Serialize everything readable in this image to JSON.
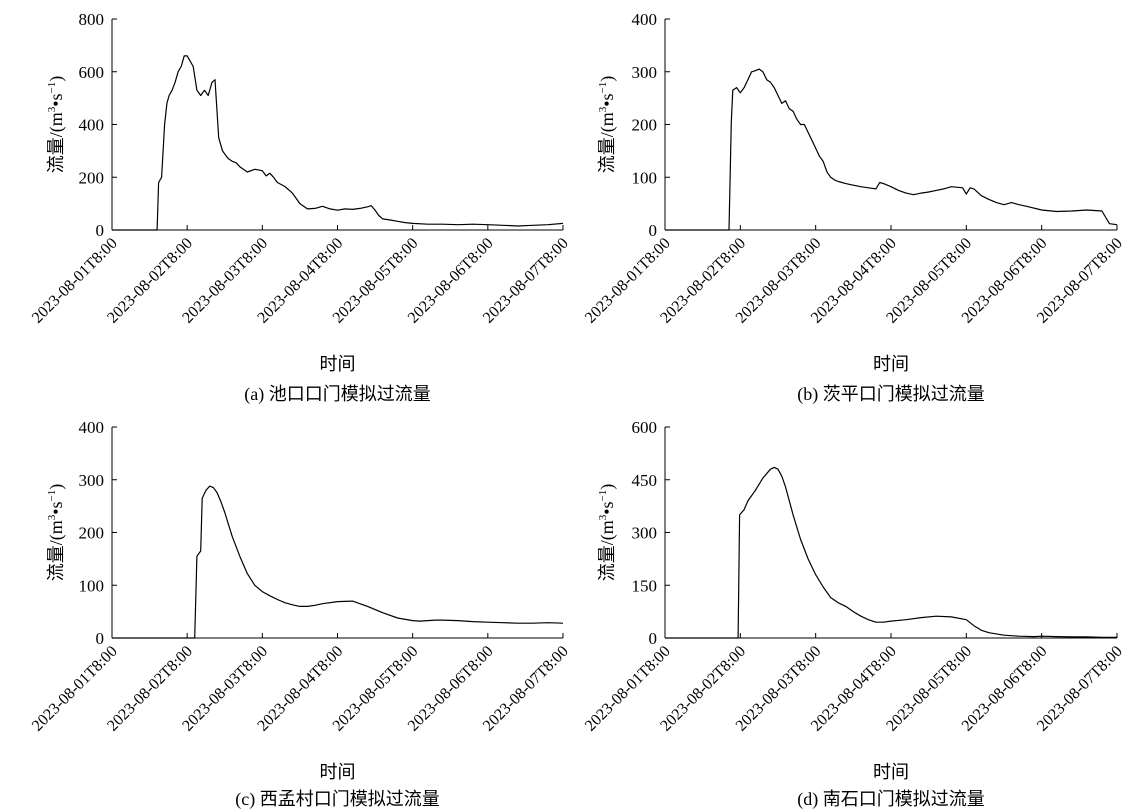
{
  "chart_data": [
    {
      "type": "line",
      "caption": "(a) 池口口门模拟过流量",
      "xlabel": "时间",
      "ylabel_main": "流量/(m",
      "ylabel_sup": "3",
      "ylabel_mid": "•s",
      "ylabel_sup2": "−1",
      "ylabel_end": ")",
      "x_ticks": [
        "2023-08-01T8:00",
        "2023-08-02T8:00",
        "2023-08-03T8:00",
        "2023-08-04T8:00",
        "2023-08-05T8:00",
        "2023-08-06T8:00",
        "2023-08-07T8:00"
      ],
      "xlim": [
        0,
        6
      ],
      "ylim": [
        0,
        800
      ],
      "y_ticks": [
        0,
        200,
        400,
        600,
        800
      ],
      "series": [
        {
          "x": [
            0,
            0.6,
            0.62,
            0.66,
            0.7,
            0.73,
            0.76,
            0.8,
            0.84,
            0.88,
            0.92,
            0.96,
            1.0,
            1.04,
            1.08,
            1.13,
            1.18,
            1.23,
            1.28,
            1.33,
            1.37,
            1.42,
            1.47,
            1.52,
            1.55,
            1.6,
            1.65,
            1.7,
            1.8,
            1.9,
            2.0,
            2.05,
            2.1,
            2.15,
            2.2,
            2.3,
            2.4,
            2.5,
            2.6,
            2.7,
            2.8,
            2.9,
            3.0,
            3.1,
            3.2,
            3.3,
            3.4,
            3.45,
            3.5,
            3.55,
            3.6,
            3.7,
            3.8,
            3.9,
            4.0,
            4.2,
            4.4,
            4.6,
            4.8,
            5.0,
            5.2,
            5.4,
            5.6,
            5.8,
            6.0
          ],
          "y": [
            0,
            0,
            180,
            200,
            400,
            480,
            510,
            530,
            560,
            600,
            620,
            660,
            660,
            640,
            620,
            530,
            510,
            530,
            510,
            560,
            570,
            350,
            300,
            280,
            270,
            260,
            255,
            240,
            220,
            230,
            225,
            205,
            215,
            200,
            180,
            165,
            140,
            100,
            80,
            82,
            90,
            80,
            75,
            80,
            78,
            82,
            88,
            92,
            75,
            55,
            42,
            38,
            33,
            28,
            25,
            22,
            22,
            20,
            22,
            20,
            18,
            15,
            18,
            20,
            25
          ]
        }
      ]
    },
    {
      "type": "line",
      "caption": "(b) 茨平口门模拟过流量",
      "xlabel": "时间",
      "ylabel_main": "流量/(m",
      "ylabel_sup": "3",
      "ylabel_mid": "•s",
      "ylabel_sup2": "−1",
      "ylabel_end": ")",
      "x_ticks": [
        "2023-08-01T8:00",
        "2023-08-02T8:00",
        "2023-08-03T8:00",
        "2023-08-04T8:00",
        "2023-08-05T8:00",
        "2023-08-06T8:00",
        "2023-08-07T8:00"
      ],
      "xlim": [
        0,
        6
      ],
      "ylim": [
        0,
        400
      ],
      "y_ticks": [
        0,
        100,
        200,
        300,
        400
      ],
      "series": [
        {
          "x": [
            0,
            0.85,
            0.88,
            0.9,
            0.95,
            1.0,
            1.05,
            1.1,
            1.15,
            1.2,
            1.25,
            1.3,
            1.35,
            1.4,
            1.45,
            1.5,
            1.55,
            1.6,
            1.65,
            1.7,
            1.75,
            1.8,
            1.85,
            1.9,
            1.95,
            2.0,
            2.05,
            2.1,
            2.15,
            2.2,
            2.25,
            2.3,
            2.35,
            2.4,
            2.5,
            2.6,
            2.7,
            2.8,
            2.85,
            2.9,
            3.0,
            3.1,
            3.2,
            3.3,
            3.4,
            3.5,
            3.6,
            3.7,
            3.8,
            3.95,
            4.0,
            4.05,
            4.1,
            4.2,
            4.3,
            4.4,
            4.5,
            4.6,
            4.7,
            4.8,
            5.0,
            5.2,
            5.4,
            5.6,
            5.8,
            5.9,
            6.0
          ],
          "y": [
            0,
            0,
            205,
            265,
            270,
            260,
            270,
            285,
            300,
            302,
            305,
            300,
            285,
            280,
            270,
            255,
            240,
            245,
            230,
            225,
            210,
            200,
            200,
            185,
            170,
            155,
            140,
            130,
            110,
            100,
            95,
            92,
            90,
            88,
            85,
            82,
            80,
            78,
            90,
            88,
            82,
            75,
            70,
            67,
            70,
            72,
            75,
            78,
            82,
            80,
            68,
            80,
            78,
            65,
            58,
            52,
            48,
            52,
            48,
            45,
            38,
            35,
            36,
            38,
            36,
            12,
            10
          ]
        }
      ]
    },
    {
      "type": "line",
      "caption": "(c) 西孟村口门模拟过流量",
      "xlabel": "时间",
      "ylabel_main": "流量/(m",
      "ylabel_sup": "3",
      "ylabel_mid": "•s",
      "ylabel_sup2": "−1",
      "ylabel_end": ")",
      "x_ticks": [
        "2023-08-01T8:00",
        "2023-08-02T8:00",
        "2023-08-03T8:00",
        "2023-08-04T8:00",
        "2023-08-05T8:00",
        "2023-08-06T8:00",
        "2023-08-07T8:00"
      ],
      "xlim": [
        0,
        6
      ],
      "ylim": [
        0,
        400
      ],
      "y_ticks": [
        0,
        100,
        200,
        300,
        400
      ],
      "series": [
        {
          "x": [
            0,
            1.1,
            1.13,
            1.18,
            1.2,
            1.25,
            1.3,
            1.35,
            1.4,
            1.45,
            1.5,
            1.55,
            1.6,
            1.7,
            1.8,
            1.9,
            2.0,
            2.1,
            2.2,
            2.3,
            2.4,
            2.5,
            2.6,
            2.7,
            2.8,
            3.0,
            3.2,
            3.4,
            3.6,
            3.8,
            4.0,
            4.1,
            4.2,
            4.3,
            4.4,
            4.6,
            4.8,
            5.0,
            5.2,
            5.4,
            5.6,
            5.8,
            6.0
          ],
          "y": [
            0,
            0,
            155,
            165,
            265,
            280,
            288,
            285,
            275,
            258,
            238,
            215,
            192,
            155,
            122,
            100,
            88,
            80,
            73,
            67,
            63,
            60,
            60,
            62,
            65,
            69,
            70,
            60,
            48,
            38,
            33,
            32,
            33,
            34,
            34,
            33,
            31,
            30,
            29,
            28,
            28,
            29,
            28
          ]
        }
      ]
    },
    {
      "type": "line",
      "caption": "(d) 南石口门模拟过流量",
      "xlabel": "时间",
      "ylabel_main": "流量/(m",
      "ylabel_sup": "3",
      "ylabel_mid": "•s",
      "ylabel_sup2": "−1",
      "ylabel_end": ")",
      "x_ticks": [
        "2023-08-01T8:00",
        "2023-08-02T8:00",
        "2023-08-03T8:00",
        "2023-08-04T8:00",
        "2023-08-05T8:00",
        "2023-08-06T8:00",
        "2023-08-07T8:00"
      ],
      "xlim": [
        0,
        6
      ],
      "ylim": [
        0,
        600
      ],
      "y_ticks": [
        0,
        150,
        300,
        450,
        600
      ],
      "series": [
        {
          "x": [
            0,
            0.97,
            0.99,
            1.05,
            1.1,
            1.2,
            1.3,
            1.4,
            1.45,
            1.5,
            1.55,
            1.6,
            1.7,
            1.8,
            1.9,
            2.0,
            2.1,
            2.2,
            2.3,
            2.4,
            2.5,
            2.6,
            2.7,
            2.8,
            2.9,
            3.0,
            3.2,
            3.4,
            3.6,
            3.8,
            4.0,
            4.1,
            4.2,
            4.3,
            4.5,
            4.7,
            4.9,
            5.0,
            5.2,
            5.4,
            5.6,
            5.8,
            6.0
          ],
          "y": [
            0,
            0,
            350,
            365,
            390,
            420,
            455,
            480,
            485,
            480,
            460,
            430,
            350,
            280,
            225,
            180,
            145,
            115,
            100,
            90,
            75,
            62,
            52,
            45,
            45,
            48,
            52,
            58,
            62,
            60,
            52,
            35,
            22,
            15,
            8,
            5,
            4,
            5,
            4,
            3,
            3,
            2,
            2
          ]
        }
      ]
    }
  ]
}
